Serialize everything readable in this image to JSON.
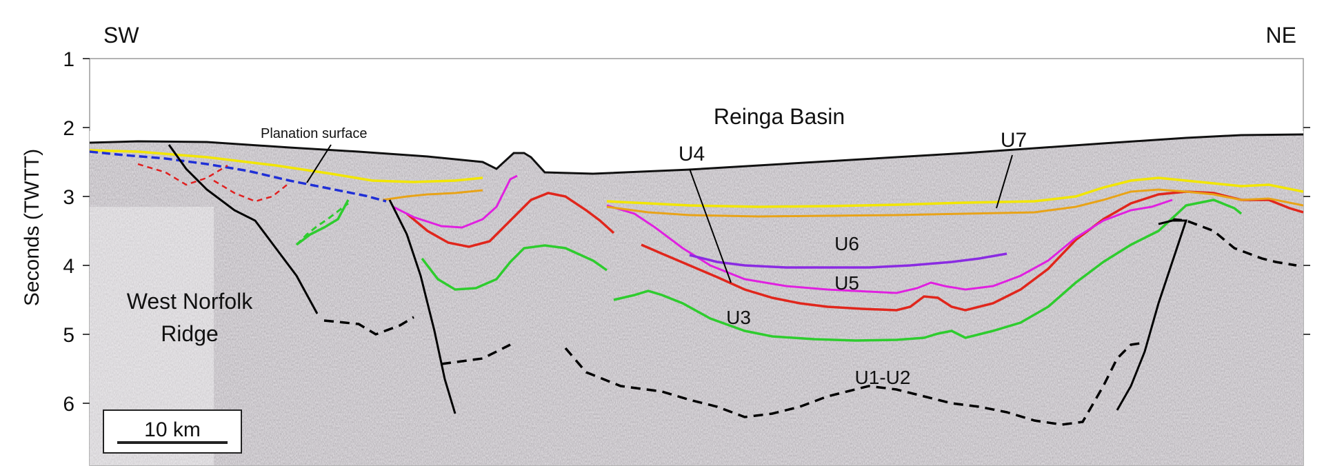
{
  "orientation": {
    "left": "SW",
    "right": "NE"
  },
  "y_axis": {
    "label": "Seconds (TWTT)",
    "ticks": [
      "1",
      "2",
      "3",
      "4",
      "5",
      "6"
    ]
  },
  "labels": {
    "planation_surface": "Planation surface",
    "reinga_basin": "Reinga Basin",
    "west_norfolk_line1": "West Norfolk",
    "west_norfolk_line2": "Ridge",
    "u1_u2": "U1-U2",
    "u3": "U3",
    "u4": "U4",
    "u5": "U5",
    "u6": "U6",
    "u7": "U7"
  },
  "scale_bar": {
    "label": "10 km"
  },
  "colors": {
    "seafloor": "#111111",
    "u7_yellow": "#f2e600",
    "u6_orange": "#e8a317",
    "u5_magenta": "#e020e0",
    "u4_purple": "#8a2be2",
    "u3_red": "#e0261c",
    "u1u2_green": "#2ecc2e",
    "planation_blue": "#1f2fd6",
    "fault": "#000000",
    "basement_dashed": "#000000",
    "red_dashed": "#e02020"
  }
}
